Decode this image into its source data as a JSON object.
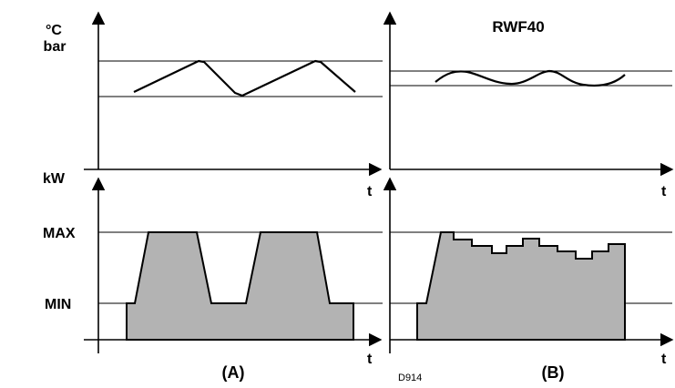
{
  "labels": {
    "temp_unit": "°C",
    "pressure_unit": "bar",
    "power_unit": "kW",
    "max": "MAX",
    "min": "MIN",
    "time": "t",
    "controller": "RWF40",
    "panel_a": "(A)",
    "panel_b": "(B)",
    "drawing_code": "D914"
  },
  "colors": {
    "fill": "#b3b3b3",
    "line": "#000000",
    "background": "#ffffff"
  }
}
